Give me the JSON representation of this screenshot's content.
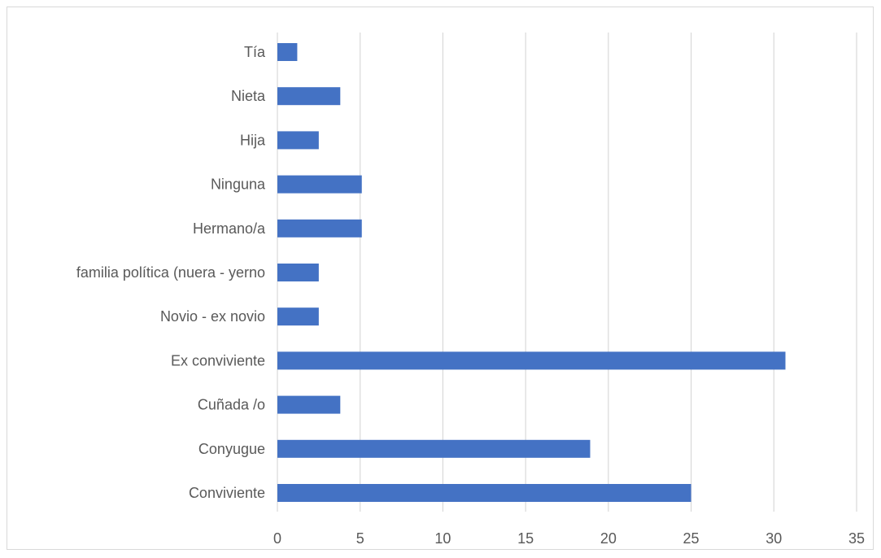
{
  "chart_data": {
    "type": "bar",
    "orientation": "horizontal",
    "categories": [
      "Tía",
      "Nieta ",
      "Hija",
      "Ninguna ",
      "Hermano/a",
      "familia política (nuera - yerno",
      "Novio - ex novio ",
      "Ex conviviente",
      "Cuñada /o",
      "Conyugue ",
      "Conviviente"
    ],
    "values": [
      1.2,
      3.8,
      2.5,
      5.1,
      5.1,
      2.5,
      2.5,
      30.7,
      3.8,
      18.9,
      25.0
    ],
    "xlim": [
      0,
      35
    ],
    "xticks": [
      0,
      5,
      10,
      15,
      20,
      25,
      30,
      35
    ],
    "xtick_labels": [
      "0",
      "5",
      "10",
      "15",
      "20",
      "25",
      "30",
      "35"
    ],
    "grid": true,
    "bar_color": "#4472c4",
    "grid_color": "#d9d9d9",
    "text_color": "#595959",
    "title": "",
    "xlabel": "",
    "ylabel": ""
  }
}
